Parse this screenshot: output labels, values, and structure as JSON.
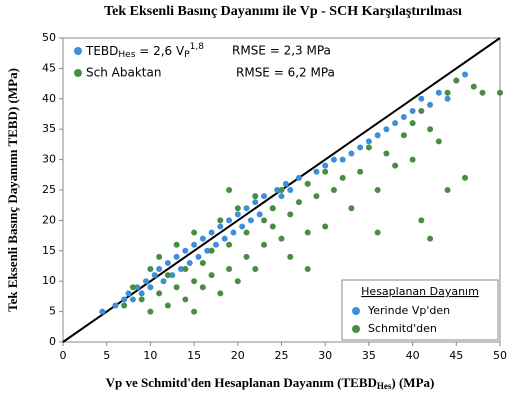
{
  "chart_data": {
    "type": "scatter",
    "title": "Tek Eksenli Basınç Dayanımı ile Vp - SCH Karşılaştırılması",
    "y_label": "Tek Eksenli Basınç Dayanımı TEBD) (MPa)",
    "x_label": {
      "text": "Vp ve Schmitd'den Hesaplanan Dayanım (TEBD",
      "sub": "Hes",
      "tail": ") (MPa)"
    },
    "xlim": [
      0,
      50
    ],
    "ylim": [
      0,
      50
    ],
    "xticks": [
      0,
      5,
      10,
      15,
      20,
      25,
      30,
      35,
      40,
      45,
      50
    ],
    "yticks": [
      0,
      5,
      10,
      15,
      20,
      25,
      30,
      35,
      40,
      45,
      50
    ],
    "formula": {
      "lhs": "TEBD",
      "lhs_sub": "Hes",
      "rhs": " = 2,6 V",
      "rhs_sub": "P",
      "exp": "1,8"
    },
    "sch_label": "Sch Abaktan",
    "rmse": [
      "RMSE = 2,3 MPa",
      "RMSE = 6,2 MPa"
    ],
    "legend_title": "Hesaplanan Dayanım",
    "legend_position": "lower right",
    "series": [
      {
        "name": "Yerinde Vp'den",
        "color": "#3d8fd8",
        "x": [
          4.5,
          6,
          7,
          7.5,
          8,
          8.5,
          9,
          9.5,
          10,
          10.5,
          11,
          11.5,
          12,
          12.5,
          13,
          13.5,
          14,
          14.5,
          15,
          15.5,
          16,
          16.5,
          17,
          17.5,
          18,
          18.5,
          19,
          19.5,
          20,
          20.5,
          21,
          21.5,
          22,
          22.5,
          23,
          24,
          24.5,
          25,
          25.5,
          26,
          27,
          28,
          29,
          30,
          31,
          32,
          33,
          34,
          35,
          36,
          37,
          38,
          39,
          40,
          41,
          42,
          43,
          44,
          45,
          46
        ],
        "values": [
          5,
          6,
          7,
          8,
          7,
          9,
          8,
          10,
          9,
          11,
          12,
          10,
          13,
          11,
          14,
          12,
          15,
          13,
          16,
          14,
          17,
          15,
          18,
          16,
          19,
          17,
          20,
          18,
          21,
          19,
          22,
          20,
          23,
          21,
          24,
          22,
          25,
          24,
          26,
          25,
          27,
          26,
          28,
          29,
          30,
          30,
          31,
          32,
          33,
          34,
          35,
          36,
          37,
          38,
          40,
          39,
          41,
          40,
          43,
          44
        ]
      },
      {
        "name": "Schmitd'den",
        "color": "#4a8c43",
        "x": [
          7,
          8,
          9,
          10,
          10,
          11,
          11,
          12,
          12,
          13,
          13,
          14,
          14,
          15,
          15,
          15,
          16,
          16,
          17,
          17,
          18,
          18,
          19,
          19,
          20,
          20,
          21,
          21,
          22,
          22,
          23,
          23,
          24,
          24,
          25,
          25,
          26,
          26,
          27,
          28,
          28,
          29,
          30,
          30,
          31,
          32,
          33,
          34,
          35,
          36,
          37,
          38,
          39,
          40,
          40,
          41,
          42,
          43,
          44,
          45,
          46,
          47,
          48,
          50,
          36,
          41,
          44,
          42,
          28,
          19
        ],
        "values": [
          6,
          9,
          7,
          5,
          12,
          8,
          14,
          6,
          11,
          9,
          16,
          7,
          12,
          10,
          18,
          5,
          13,
          9,
          15,
          11,
          20,
          8,
          16,
          12,
          22,
          10,
          18,
          14,
          24,
          12,
          20,
          16,
          19,
          22,
          17,
          25,
          21,
          14,
          23,
          26,
          18,
          24,
          28,
          19,
          25,
          27,
          22,
          28,
          32,
          25,
          31,
          29,
          34,
          36,
          30,
          38,
          35,
          33,
          41,
          43,
          27,
          42,
          41,
          41,
          18,
          20,
          25,
          17,
          12,
          25
        ]
      }
    ]
  }
}
